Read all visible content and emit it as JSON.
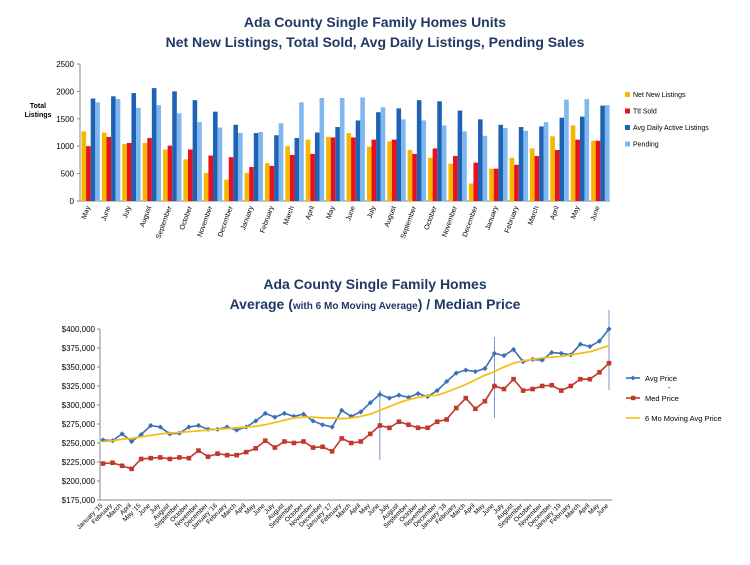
{
  "chart_data": [
    {
      "type": "bar",
      "title": "Ada County Single Family Homes Units",
      "subtitle": "Net New Listings, Total Sold, Avg Daily Listings, Pending Sales",
      "ylabel": "Total\nListings",
      "ylim": [
        0,
        2500
      ],
      "yticks": [
        0,
        500,
        1000,
        1500,
        2000,
        2500
      ],
      "legend_position": "right",
      "categories": [
        "May",
        "June",
        "July",
        "August",
        "September",
        "October",
        "November",
        "December",
        "January",
        "February",
        "March",
        "April",
        "May",
        "June",
        "July",
        "August",
        "September",
        "October",
        "November",
        "December",
        "January",
        "February",
        "March",
        "April",
        "May",
        "June"
      ],
      "series": [
        {
          "name": "Net New Listings",
          "color": "#f5b800",
          "values": [
            1270,
            1250,
            1040,
            1060,
            940,
            760,
            510,
            390,
            510,
            690,
            1000,
            1120,
            1170,
            1240,
            990,
            1090,
            930,
            790,
            680,
            320,
            590,
            790,
            960,
            1180,
            1380,
            1100
          ]
        },
        {
          "name": "Ttl Sold",
          "color": "#e8101c",
          "values": [
            1000,
            1170,
            1060,
            1150,
            1010,
            940,
            830,
            800,
            620,
            640,
            840,
            860,
            1160,
            1160,
            1120,
            1120,
            860,
            960,
            820,
            700,
            590,
            660,
            820,
            930,
            1120,
            1100
          ]
        },
        {
          "name": "Avg Daily Active Listings",
          "color": "#1f62b4",
          "values": [
            1870,
            1910,
            1970,
            2060,
            2000,
            1840,
            1630,
            1390,
            1240,
            1200,
            1150,
            1250,
            1350,
            1470,
            1620,
            1690,
            1840,
            1820,
            1650,
            1490,
            1390,
            1350,
            1360,
            1520,
            1540,
            1740
          ]
        },
        {
          "name": "Pending",
          "color": "#7fb7f0",
          "values": [
            1800,
            1860,
            1700,
            1750,
            1600,
            1440,
            1340,
            1240,
            1260,
            1420,
            1800,
            1880,
            1880,
            1890,
            1710,
            1490,
            1470,
            1380,
            1270,
            1190,
            1330,
            1280,
            1440,
            1850,
            1860,
            1750
          ]
        }
      ]
    },
    {
      "type": "line",
      "title": "Ada County Single Family Homes",
      "subtitle_parts": [
        "Average (",
        "with 6 Mo Moving Average",
        ") / Median Price"
      ],
      "ylim": [
        175000,
        400000
      ],
      "ytick_labels": [
        "$175,000",
        "$200,000",
        "$225,000",
        "$250,000",
        "$275,000",
        "$300,000",
        "$325,000",
        "$350,000",
        "$375,000",
        "$400,000"
      ],
      "legend_position": "right",
      "categories": [
        "January '15",
        "February",
        "March",
        "April",
        "May '15",
        "June",
        "July",
        "August",
        "September",
        "October",
        "November",
        "December",
        "January '16",
        "February",
        "March",
        "April",
        "May",
        "June",
        "July",
        "August",
        "September",
        "October",
        "November",
        "December",
        "January '17",
        "February",
        "March",
        "April",
        "May",
        "June",
        "July",
        "August",
        "September",
        "October",
        "November",
        "December",
        "January '18",
        "February",
        "March",
        "April",
        "May",
        "June",
        "July",
        "August",
        "September",
        "October",
        "November",
        "December",
        "January '19",
        "February",
        "March",
        "April",
        "May",
        "June"
      ],
      "series": [
        {
          "name": "Avg Price",
          "color": "#3a6fb7",
          "values": [
            254000,
            253000,
            262000,
            252000,
            261000,
            273000,
            271000,
            262000,
            263000,
            271000,
            273000,
            268000,
            268000,
            271000,
            267000,
            271000,
            279000,
            289000,
            284000,
            289000,
            285000,
            288000,
            279000,
            274000,
            271000,
            293000,
            285000,
            291000,
            303000,
            314000,
            309000,
            313000,
            310000,
            315000,
            311000,
            319000,
            331000,
            342000,
            346000,
            344000,
            348000,
            368000,
            365000,
            373000,
            357000,
            360000,
            359000,
            369000,
            368000,
            366000,
            380000,
            377000,
            384000,
            400000
          ]
        },
        {
          "name": "Med Price",
          "color": "#c0392b",
          "values": [
            223000,
            224000,
            220000,
            216000,
            229000,
            230000,
            231000,
            229000,
            231000,
            230000,
            240000,
            232000,
            236000,
            234000,
            234000,
            238000,
            243000,
            253000,
            244000,
            252000,
            250000,
            252000,
            244000,
            245000,
            239000,
            256000,
            250000,
            252000,
            262000,
            273000,
            270000,
            278000,
            274000,
            270000,
            270000,
            278000,
            281000,
            296000,
            309000,
            295000,
            305000,
            325000,
            321000,
            334000,
            319000,
            321000,
            325000,
            326000,
            319000,
            325000,
            334000,
            334000,
            343000,
            355000
          ]
        },
        {
          "name": "6 Mo Moving Avg Price",
          "color": "#f4c01a",
          "values": [
            252000,
            253000,
            255000,
            256000,
            258000,
            260000,
            262000,
            263000,
            264000,
            265000,
            266000,
            267000,
            268000,
            269000,
            270000,
            271000,
            272000,
            274000,
            277000,
            280000,
            283000,
            284000,
            284000,
            283000,
            283000,
            282000,
            283000,
            285000,
            288000,
            293000,
            298000,
            303000,
            307000,
            310000,
            312000,
            313000,
            317000,
            322000,
            327000,
            333000,
            339000,
            344000,
            350000,
            355000,
            358000,
            360000,
            362000,
            363000,
            364000,
            366000,
            368000,
            370000,
            374000,
            378000
          ]
        }
      ],
      "annotations": [
        "-"
      ]
    }
  ]
}
